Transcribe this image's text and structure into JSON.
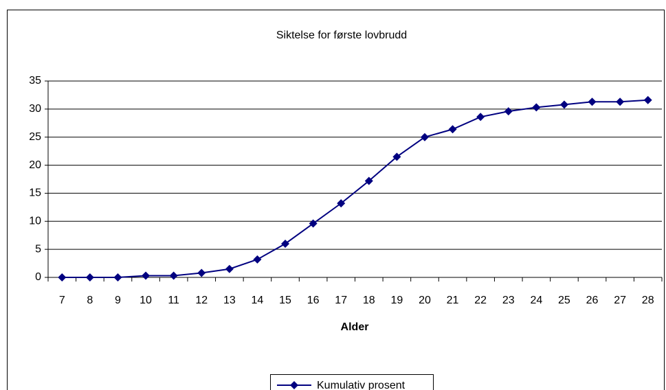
{
  "chart_data": {
    "type": "line",
    "title": "Siktelse for første lovbrudd",
    "x_label": "Alder",
    "categories": [
      "7",
      "8",
      "9",
      "10",
      "11",
      "12",
      "13",
      "14",
      "15",
      "16",
      "17",
      "18",
      "19",
      "20",
      "21",
      "22",
      "23",
      "24",
      "25",
      "26",
      "27",
      "28"
    ],
    "series": [
      {
        "name": "Kumulativ prosent",
        "color": "#000080",
        "values": [
          0,
          0,
          0,
          0.3,
          0.3,
          0.8,
          1.5,
          3.2,
          6,
          9.6,
          13.2,
          17.2,
          21.5,
          25,
          26.4,
          28.6,
          29.6,
          30.3,
          30.8,
          31.3,
          31.3,
          31.6
        ]
      }
    ],
    "ylim": [
      0,
      35
    ],
    "yticks": [
      0,
      5,
      10,
      15,
      20,
      25,
      30,
      35
    ],
    "grid": true,
    "legend": "bottom"
  }
}
